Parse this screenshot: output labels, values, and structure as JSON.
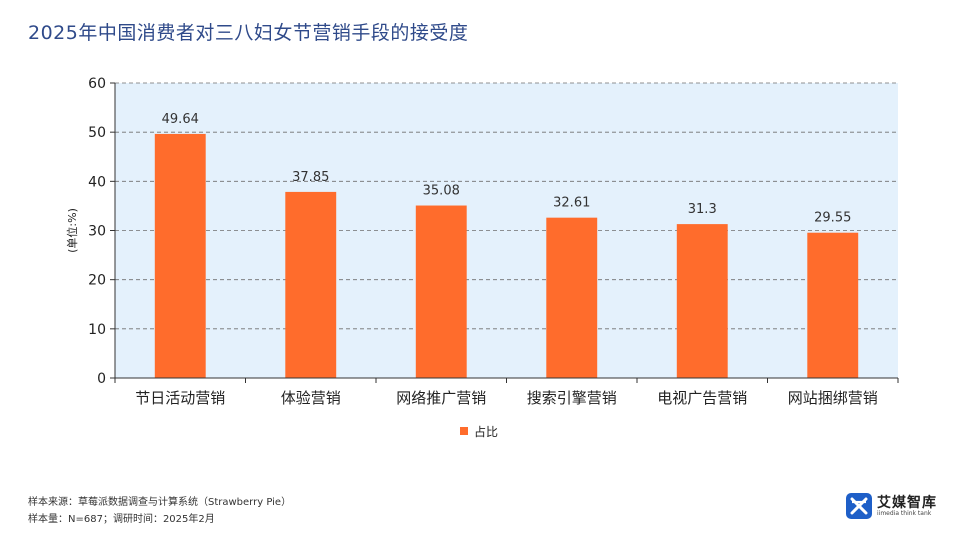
{
  "page": {
    "title": "2025年中国消费者对三八妇女节营销手段的接受度",
    "source_line": "样本来源：草莓派数据调查与计算系统（Strawberry Pie）",
    "sample_line": "样本量：N=687；调研时间：2025年2月"
  },
  "logo": {
    "name": "艾媒智库",
    "subtitle": "iimedia think tank",
    "icon": "iimedia-logo-icon"
  },
  "colors": {
    "bar": "#ff6c2c",
    "plot_bg": "#e4f1fc",
    "grid": "#6f6f6f",
    "title": "#2f4a8a"
  },
  "chart_data": {
    "type": "bar",
    "title": "2025年中国消费者对三八妇女节营销手段的接受度",
    "xlabel": "",
    "ylabel": "(单位:%)",
    "ylim": [
      0,
      60
    ],
    "yticks": [
      0,
      10,
      20,
      30,
      40,
      50,
      60
    ],
    "grid": true,
    "legend_position": "bottom",
    "categories": [
      "节日活动营销",
      "体验营销",
      "网络推广营销",
      "搜索引擎营销",
      "电视广告营销",
      "网站捆绑营销"
    ],
    "series": [
      {
        "name": "占比",
        "values": [
          49.64,
          37.85,
          35.08,
          32.61,
          31.3,
          29.55
        ],
        "labels": [
          "49.64",
          "37.85",
          "35.08",
          "32.61",
          "31.3",
          "29.55"
        ]
      }
    ]
  }
}
